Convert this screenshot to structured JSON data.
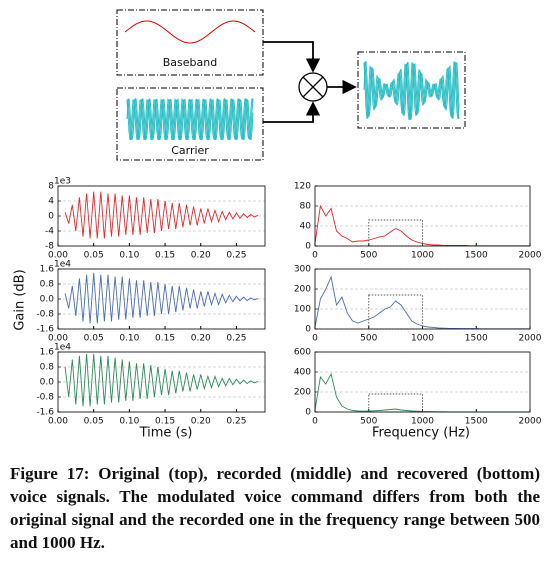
{
  "diagram": {
    "baseband_label": "Baseband",
    "carrier_label": "Carrier"
  },
  "axis_labels": {
    "y": "Gain (dB)",
    "x_left": "Time (s)",
    "x_right": "Frequency (Hz)"
  },
  "chart_data": [
    {
      "type": "line",
      "color": "#e8262b",
      "y_offset_label": "1e3",
      "grid": true,
      "x": [
        0.01,
        0.015,
        0.02,
        0.025,
        0.03,
        0.035,
        0.04,
        0.045,
        0.05,
        0.055,
        0.06,
        0.065,
        0.07,
        0.075,
        0.08,
        0.085,
        0.09,
        0.095,
        0.1,
        0.105,
        0.11,
        0.115,
        0.12,
        0.125,
        0.13,
        0.135,
        0.14,
        0.145,
        0.15,
        0.155,
        0.16,
        0.165,
        0.17,
        0.175,
        0.18,
        0.185,
        0.19,
        0.195,
        0.2,
        0.205,
        0.21,
        0.215,
        0.22,
        0.225,
        0.23,
        0.235,
        0.24,
        0.245,
        0.25,
        0.255,
        0.26,
        0.265,
        0.27,
        0.275,
        0.28
      ],
      "values": [
        1,
        -2,
        3,
        -4,
        5,
        -5.5,
        6,
        -6,
        6.5,
        -6,
        6.5,
        -6,
        6,
        -5.5,
        6,
        -5.5,
        5.5,
        -5,
        5.5,
        -5,
        5,
        -5,
        5,
        -4.5,
        4.5,
        -4.5,
        4.5,
        -4,
        4,
        -3.5,
        3.5,
        -3.5,
        3.5,
        -3,
        3,
        -2.5,
        2.5,
        -2.5,
        2,
        -2,
        2,
        -1.5,
        1.5,
        -1.5,
        1.2,
        -1,
        1,
        -0.8,
        0.8,
        -0.6,
        0.6,
        -0.4,
        0.4,
        -0.3,
        0.2
      ],
      "xlim": [
        0,
        0.29
      ],
      "ylim": [
        -8,
        8
      ],
      "xticks": [
        {
          "value": 0,
          "label": "0.00"
        },
        {
          "value": 0.05,
          "label": "0.05"
        },
        {
          "value": 0.1,
          "label": "0.10"
        },
        {
          "value": 0.15,
          "label": "0.15"
        },
        {
          "value": 0.2,
          "label": "0.20"
        },
        {
          "value": 0.25,
          "label": "0.25"
        }
      ],
      "yticks": [
        -8,
        -4,
        0,
        4,
        8
      ]
    },
    {
      "type": "line",
      "color": "#e8262b",
      "grid": true,
      "x": [
        0,
        50,
        100,
        150,
        200,
        250,
        300,
        350,
        400,
        450,
        500,
        550,
        600,
        650,
        700,
        750,
        800,
        850,
        900,
        950,
        1000,
        1050,
        1100,
        1150,
        1200,
        1250,
        1300,
        1350,
        1400,
        1450,
        1500,
        1550,
        1600,
        1650,
        1700,
        1750,
        1800,
        1850,
        1900,
        1950,
        2000
      ],
      "values": [
        5,
        80,
        60,
        75,
        30,
        20,
        15,
        8,
        10,
        10,
        12,
        15,
        18,
        20,
        28,
        35,
        30,
        20,
        12,
        8,
        5,
        3,
        2,
        2,
        1,
        1,
        1,
        1,
        1,
        0.5,
        0.5,
        0.5,
        0.5,
        0.5,
        0.5,
        0.5,
        0.5,
        0.5,
        0.5,
        0.5,
        0.5
      ],
      "xlim": [
        0,
        2000
      ],
      "ylim": [
        0,
        120
      ],
      "xticks": [
        0,
        500,
        1000,
        1500,
        2000
      ],
      "yticks": [
        0,
        40,
        80,
        120
      ],
      "box_x": [
        500,
        1000
      ],
      "box_y": [
        0,
        52
      ]
    },
    {
      "type": "line",
      "color": "#4b6cb7",
      "y_offset_label": "1e4",
      "grid": true,
      "x": [
        0.01,
        0.015,
        0.02,
        0.025,
        0.03,
        0.035,
        0.04,
        0.045,
        0.05,
        0.055,
        0.06,
        0.065,
        0.07,
        0.075,
        0.08,
        0.085,
        0.09,
        0.095,
        0.1,
        0.105,
        0.11,
        0.115,
        0.12,
        0.125,
        0.13,
        0.135,
        0.14,
        0.145,
        0.15,
        0.155,
        0.16,
        0.165,
        0.17,
        0.175,
        0.18,
        0.185,
        0.19,
        0.195,
        0.2,
        0.205,
        0.21,
        0.215,
        0.22,
        0.225,
        0.23,
        0.235,
        0.24,
        0.245,
        0.25,
        0.255,
        0.26,
        0.265,
        0.27,
        0.275,
        0.28
      ],
      "values": [
        0.3,
        -0.5,
        0.7,
        -0.9,
        1.1,
        -1.2,
        1.3,
        -1.3,
        1.4,
        -1.3,
        1.3,
        -1.2,
        1.3,
        -1.2,
        1.2,
        -1.1,
        1.2,
        -1.1,
        1.1,
        -1.0,
        1.0,
        -1.0,
        1.0,
        -0.9,
        0.9,
        -0.9,
        0.9,
        -0.8,
        0.8,
        -0.8,
        0.7,
        -0.7,
        0.7,
        -0.6,
        0.6,
        -0.5,
        0.5,
        -0.5,
        0.4,
        -0.4,
        0.4,
        -0.3,
        0.3,
        -0.3,
        0.25,
        -0.2,
        0.2,
        -0.15,
        0.15,
        -0.1,
        0.1,
        -0.08,
        0.06,
        -0.05,
        0.03
      ],
      "xlim": [
        0,
        0.29
      ],
      "ylim": [
        -1.6,
        1.6
      ],
      "xticks": [
        {
          "value": 0,
          "label": "0.00"
        },
        {
          "value": 0.05,
          "label": "0.05"
        },
        {
          "value": 0.1,
          "label": "0.10"
        },
        {
          "value": 0.15,
          "label": "0.15"
        },
        {
          "value": 0.2,
          "label": "0.20"
        },
        {
          "value": 0.25,
          "label": "0.25"
        }
      ],
      "yticks": [
        -1.6,
        -0.8,
        {
          "value": 0,
          "label": "0.0"
        },
        0.8,
        1.6
      ]
    },
    {
      "type": "line",
      "color": "#4b6cb7",
      "grid": true,
      "x": [
        0,
        50,
        100,
        150,
        200,
        250,
        300,
        350,
        400,
        450,
        500,
        550,
        600,
        650,
        700,
        750,
        800,
        850,
        900,
        950,
        1000,
        1050,
        1100,
        1150,
        1200,
        1250,
        1300,
        1350,
        1400,
        1450,
        1500,
        1550,
        1600,
        1650,
        1700,
        1750,
        1800,
        1850,
        1900,
        1950,
        2000
      ],
      "values": [
        10,
        150,
        200,
        260,
        120,
        160,
        80,
        40,
        30,
        40,
        50,
        60,
        80,
        100,
        110,
        140,
        120,
        80,
        40,
        25,
        15,
        10,
        8,
        5,
        4,
        3,
        3,
        2,
        2,
        2,
        2,
        1,
        1,
        1,
        1,
        1,
        1,
        1,
        1,
        1,
        1
      ],
      "xlim": [
        0,
        2000
      ],
      "ylim": [
        0,
        300
      ],
      "xticks": [
        0,
        500,
        1000,
        1500,
        2000
      ],
      "yticks": [
        0,
        100,
        200,
        300
      ],
      "box_x": [
        500,
        1000
      ],
      "box_y": [
        0,
        170
      ]
    },
    {
      "type": "line",
      "color": "#2e8b57",
      "y_offset_label": "1e4",
      "grid": true,
      "x": [
        0.01,
        0.015,
        0.02,
        0.025,
        0.03,
        0.035,
        0.04,
        0.045,
        0.05,
        0.055,
        0.06,
        0.065,
        0.07,
        0.075,
        0.08,
        0.085,
        0.09,
        0.095,
        0.1,
        0.105,
        0.11,
        0.115,
        0.12,
        0.125,
        0.13,
        0.135,
        0.14,
        0.145,
        0.15,
        0.155,
        0.16,
        0.165,
        0.17,
        0.175,
        0.18,
        0.185,
        0.19,
        0.195,
        0.2,
        0.205,
        0.21,
        0.215,
        0.22,
        0.225,
        0.23,
        0.235,
        0.24,
        0.245,
        0.25,
        0.255,
        0.26,
        0.265,
        0.27,
        0.275,
        0.28
      ],
      "values": [
        0.8,
        -0.8,
        1.2,
        -1.2,
        1.4,
        -1.3,
        1.5,
        -1.3,
        1.5,
        -1.2,
        1.4,
        -1.2,
        1.4,
        -1.1,
        1.3,
        -1.1,
        1.2,
        -1.0,
        1.1,
        -1.0,
        1.0,
        -0.9,
        1.0,
        -0.9,
        0.9,
        -0.8,
        0.8,
        -0.7,
        0.7,
        -0.7,
        0.6,
        -0.6,
        0.6,
        -0.5,
        0.5,
        -0.5,
        0.4,
        -0.4,
        0.4,
        -0.35,
        0.3,
        -0.3,
        0.3,
        -0.25,
        0.2,
        -0.2,
        0.2,
        -0.15,
        0.15,
        -0.1,
        0.1,
        -0.08,
        0.06,
        -0.05,
        0.03
      ],
      "xlim": [
        0,
        0.29
      ],
      "ylim": [
        -1.6,
        1.6
      ],
      "xticks": [
        {
          "value": 0,
          "label": "0.00"
        },
        {
          "value": 0.05,
          "label": "0.05"
        },
        {
          "value": 0.1,
          "label": "0.10"
        },
        {
          "value": 0.15,
          "label": "0.15"
        },
        {
          "value": 0.2,
          "label": "0.20"
        },
        {
          "value": 0.25,
          "label": "0.25"
        }
      ],
      "yticks": [
        -1.6,
        -0.8,
        {
          "value": 0,
          "label": "0.0"
        },
        0.8,
        1.6
      ]
    },
    {
      "type": "line",
      "color": "#2e8b57",
      "grid": true,
      "x": [
        0,
        50,
        100,
        150,
        200,
        250,
        300,
        350,
        400,
        450,
        500,
        550,
        600,
        650,
        700,
        750,
        800,
        850,
        900,
        950,
        1000,
        1050,
        1100,
        1150,
        1200,
        1250,
        1300,
        1350,
        1400,
        1450,
        1500,
        1550,
        1600,
        1650,
        1700,
        1750,
        1800,
        1850,
        1900,
        1950,
        2000
      ],
      "values": [
        20,
        350,
        280,
        380,
        150,
        60,
        30,
        15,
        10,
        8,
        10,
        12,
        15,
        20,
        25,
        30,
        20,
        15,
        10,
        8,
        5,
        4,
        3,
        2,
        2,
        1,
        1,
        1,
        1,
        1,
        1,
        1,
        1,
        1,
        1,
        1,
        1,
        1,
        1,
        1,
        1
      ],
      "xlim": [
        0,
        2000
      ],
      "ylim": [
        0,
        600
      ],
      "xticks": [
        0,
        500,
        1000,
        1500,
        2000
      ],
      "yticks": [
        0,
        200,
        400,
        600
      ],
      "box_x": [
        500,
        1000
      ],
      "box_y": [
        0,
        180
      ]
    }
  ],
  "caption": "Figure 17: Original (top), recorded (middle) and recovered (bottom) voice signals. The modulated voice command differs from both the original signal and the recorded one in the frequency range between 500 and 1000 Hz."
}
